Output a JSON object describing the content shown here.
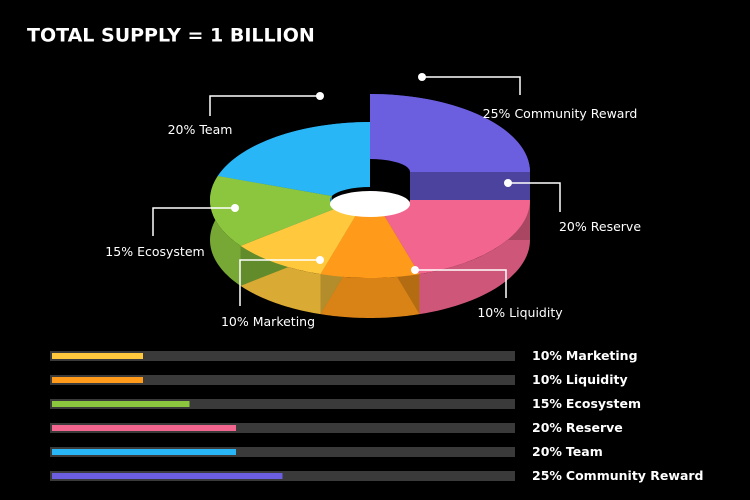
{
  "chart_data": [
    {
      "type": "pie",
      "title": "TOTAL SUPPLY = 1 BILLION",
      "categories": [
        "Community Reward",
        "Reserve",
        "Liquidity",
        "Marketing",
        "Ecosystem",
        "Team"
      ],
      "values": [
        25,
        20,
        10,
        10,
        15,
        20
      ],
      "value_labels": [
        "25%",
        "20%",
        "10%",
        "10%",
        "15%",
        "20%"
      ],
      "colors": [
        "#6b5fe0",
        "#f2658e",
        "#ff9a1a",
        "#ffc83d",
        "#8cc63f",
        "#29b6f6"
      ]
    },
    {
      "type": "bar",
      "orientation": "horizontal",
      "categories": [
        "Marketing",
        "Liquidity",
        "Ecosystem",
        "Reserve",
        "Team",
        "Community Reward"
      ],
      "values": [
        10,
        10,
        15,
        20,
        20,
        25
      ],
      "value_labels": [
        "10%",
        "10%",
        "15%",
        "20%",
        "20%",
        "25%"
      ],
      "colors": [
        "#ffc83d",
        "#ff9a1a",
        "#8cc63f",
        "#f2658e",
        "#29b6f6",
        "#6b5fe0"
      ],
      "xlim": [
        0,
        50
      ]
    }
  ]
}
